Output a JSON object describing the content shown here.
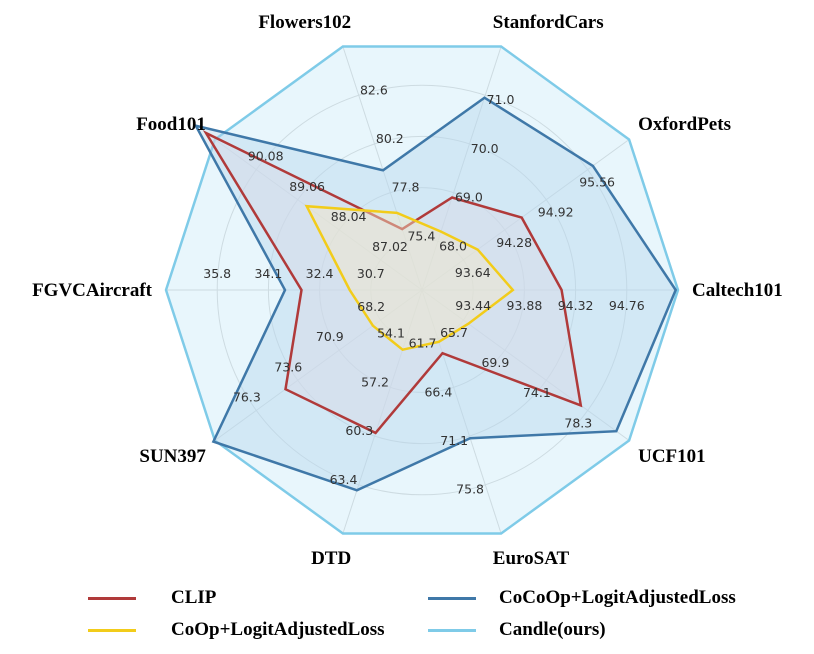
{
  "chart_data": {
    "type": "radar",
    "axes": [
      {
        "name": "Caltech101",
        "ticks": [
          "93.44",
          "93.88",
          "94.32",
          "94.76"
        ],
        "min": 93.0,
        "max": 94.76
      },
      {
        "name": "OxfordPets",
        "ticks": [
          "93.64",
          "94.28",
          "94.92",
          "95.56"
        ],
        "min": 93.0,
        "max": 95.56
      },
      {
        "name": "StanfordCars",
        "ticks": [
          "68.0",
          "69.0",
          "70.0",
          "71.0"
        ],
        "min": 67.0,
        "max": 71.0
      },
      {
        "name": "Flowers102",
        "ticks": [
          "75.4",
          "77.8",
          "80.2",
          "82.6"
        ],
        "min": 73.0,
        "max": 82.6
      },
      {
        "name": "Food101",
        "ticks": [
          "87.02",
          "88.04",
          "89.06",
          "90.08"
        ],
        "min": 86.0,
        "max": 90.08
      },
      {
        "name": "FGVCAircraft",
        "ticks": [
          "30.7",
          "32.4",
          "34.1",
          "35.8"
        ],
        "min": 29.0,
        "max": 35.8
      },
      {
        "name": "SUN397",
        "ticks": [
          "68.2",
          "70.9",
          "73.6",
          "76.3"
        ],
        "min": 65.5,
        "max": 76.3
      },
      {
        "name": "DTD",
        "ticks": [
          "54.1",
          "57.2",
          "60.3",
          "63.4"
        ],
        "min": 51.0,
        "max": 63.4
      },
      {
        "name": "EuroSAT",
        "ticks": [
          "61.7",
          "66.4",
          "71.1",
          "75.8"
        ],
        "min": 57.0,
        "max": 75.8
      },
      {
        "name": "UCF101",
        "ticks": [
          "65.7",
          "69.9",
          "74.1",
          "78.3"
        ],
        "min": 61.5,
        "max": 78.3
      }
    ],
    "series": [
      {
        "name": "Candle(ours)",
        "color": "#7fcbe8",
        "fill": "#d6eef9",
        "values": [
          94.76,
          95.56,
          71.0,
          82.6,
          90.08,
          35.8,
          76.3,
          63.4,
          75.8,
          78.3
        ]
      },
      {
        "name": "CoCoOp+LogitAdjustedLoss",
        "color": "#3f78a8",
        "fill": "#b9d7ee",
        "values": [
          94.74,
          95.0,
          69.95,
          76.5,
          90.55,
          31.85,
          76.4,
          60.65,
          66.6,
          77.0
        ]
      },
      {
        "name": "CLIP",
        "color": "#b03a3a",
        "fill": "#d9d9e6",
        "values": [
          93.76,
          93.9,
          67.9,
          73.6,
          90.3,
          31.3,
          71.7,
          57.0,
          58.4,
          73.4
        ]
      },
      {
        "name": "CoOp+LogitAdjustedLoss",
        "color": "#f2cc1a",
        "fill": "#f3e8c8",
        "values": [
          93.34,
          93.22,
          67.2,
          74.4,
          87.82,
          29.7,
          66.0,
          51.7,
          57.3,
          62.0
        ]
      }
    ],
    "legend_order": [
      "CLIP",
      "CoCoOp+LogitAdjustedLoss",
      "CoOp+LogitAdjustedLoss",
      "Candle(ours)"
    ],
    "legend_position": "bottom",
    "grid": true
  }
}
